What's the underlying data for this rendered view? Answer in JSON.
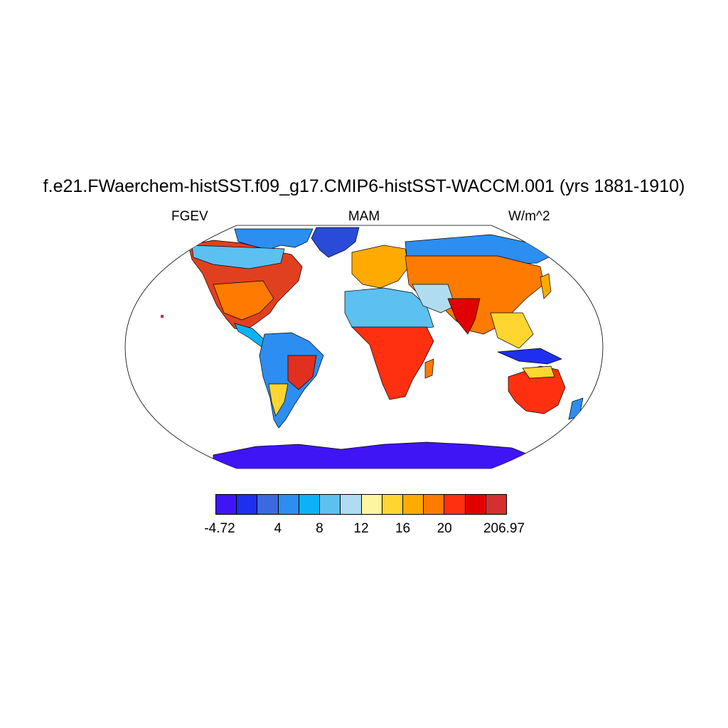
{
  "title": "f.e21.FWaerchem-histSST.f09_g17.CMIP6-histSST-WACCM.001 (yrs 1881-1910)",
  "subtitles": {
    "left": "FGEV",
    "center": "MAM",
    "right": "W/m^2"
  },
  "map": {
    "projection": "Robinson",
    "variable": "FGEV",
    "season": "MAM",
    "ocean_color": "#ffffff"
  },
  "colorbar": {
    "colors": [
      "#4015f5",
      "#1e2ff0",
      "#3b6ae0",
      "#2c8ef0",
      "#0cb2f8",
      "#5cc0f0",
      "#b0dcf2",
      "#fff4a0",
      "#ffd530",
      "#ffaa00",
      "#ff7a00",
      "#ff3010",
      "#e00000",
      "#d43030"
    ],
    "tick_labels": [
      "-4.72",
      "4",
      "8",
      "12",
      "16",
      "20",
      "206.97"
    ]
  }
}
